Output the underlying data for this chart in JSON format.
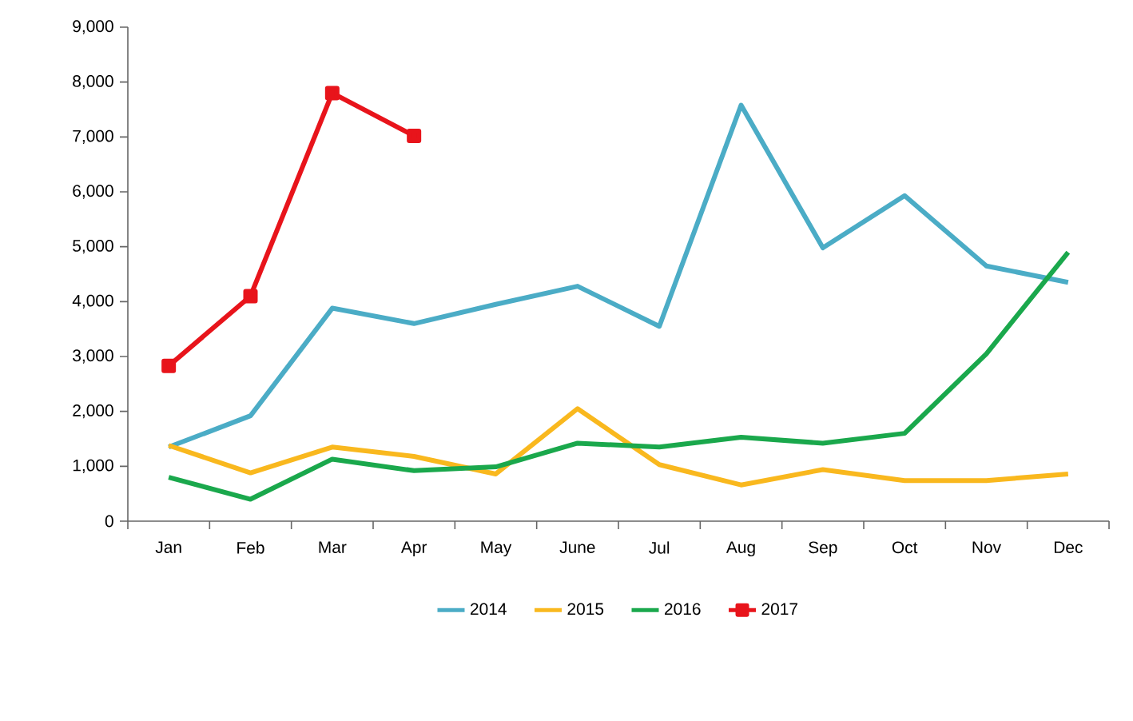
{
  "chart_data": {
    "type": "line",
    "categories": [
      "Jan",
      "Feb",
      "Mar",
      "Apr",
      "May",
      "June",
      "Jul",
      "Aug",
      "Sep",
      "Oct",
      "Nov",
      "Dec"
    ],
    "series": [
      {
        "name": "2014",
        "color": "#4bacc6",
        "values": [
          1350,
          1920,
          3880,
          3600,
          3950,
          4280,
          3550,
          7580,
          4980,
          5930,
          4650,
          4350
        ]
      },
      {
        "name": "2015",
        "color": "#f9b81e",
        "values": [
          1380,
          880,
          1350,
          1180,
          860,
          2050,
          1030,
          660,
          940,
          740,
          740,
          860
        ]
      },
      {
        "name": "2016",
        "color": "#1aa84c",
        "values": [
          800,
          400,
          1130,
          920,
          990,
          1420,
          1350,
          1530,
          1420,
          1600,
          3050,
          4900
        ]
      },
      {
        "name": "2017",
        "color": "#e8141b",
        "marker": "square",
        "values": [
          2830,
          4100,
          7800,
          7020,
          null,
          null,
          null,
          null,
          null,
          null,
          null,
          null
        ]
      }
    ],
    "ylim": [
      0,
      9000
    ],
    "yticks": [
      0,
      {
        "value": 1000,
        "label": "1,000"
      },
      {
        "value": 2000,
        "label": "2,000"
      },
      {
        "value": 3000,
        "label": "3,000"
      },
      {
        "value": 4000,
        "label": "4,000"
      },
      {
        "value": 5000,
        "label": "5,000"
      },
      {
        "value": 6000,
        "label": "6,000"
      },
      {
        "value": 7000,
        "label": "7,000"
      },
      {
        "value": 8000,
        "label": "8,000"
      },
      {
        "value": 9000,
        "label": "9,000"
      }
    ],
    "legend": "bottom",
    "grid": false,
    "line_style": "solid"
  }
}
